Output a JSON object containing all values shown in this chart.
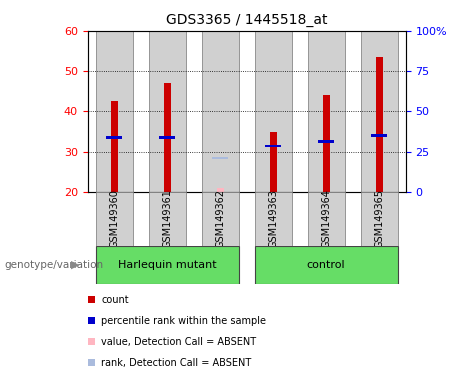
{
  "title": "GDS3365 / 1445518_at",
  "samples": [
    "GSM149360",
    "GSM149361",
    "GSM149362",
    "GSM149363",
    "GSM149364",
    "GSM149365"
  ],
  "count_values": [
    42.5,
    47.0,
    null,
    35.0,
    44.0,
    53.5
  ],
  "percentile_rank": [
    33.5,
    33.5,
    null,
    31.5,
    32.5,
    34.0
  ],
  "absent_value": [
    null,
    null,
    21.0,
    null,
    null,
    null
  ],
  "absent_rank": [
    null,
    null,
    28.5,
    null,
    null,
    null
  ],
  "ylim": [
    20,
    60
  ],
  "y2lim": [
    0,
    100
  ],
  "yticks": [
    20,
    30,
    40,
    50,
    60
  ],
  "y2ticks": [
    0,
    25,
    50,
    75,
    100
  ],
  "bar_bottom": 20,
  "colors": {
    "count": "#CC0000",
    "percentile": "#0000CC",
    "absent_value": "#FFB6C1",
    "absent_rank": "#AABBDD",
    "bar_bg": "#D0D0D0",
    "plot_bg": "#FFFFFF",
    "grid": "#000000",
    "group_bg": "#66DD66"
  },
  "legend_items": [
    {
      "label": "count",
      "color": "#CC0000"
    },
    {
      "label": "percentile rank within the sample",
      "color": "#0000CC"
    },
    {
      "label": "value, Detection Call = ABSENT",
      "color": "#FFB6C1"
    },
    {
      "label": "rank, Detection Call = ABSENT",
      "color": "#AABBDD"
    }
  ],
  "group_label": "genotype/variation",
  "groups": [
    {
      "label": "Harlequin mutant",
      "start": 0,
      "end": 2
    },
    {
      "label": "control",
      "start": 3,
      "end": 5
    }
  ]
}
